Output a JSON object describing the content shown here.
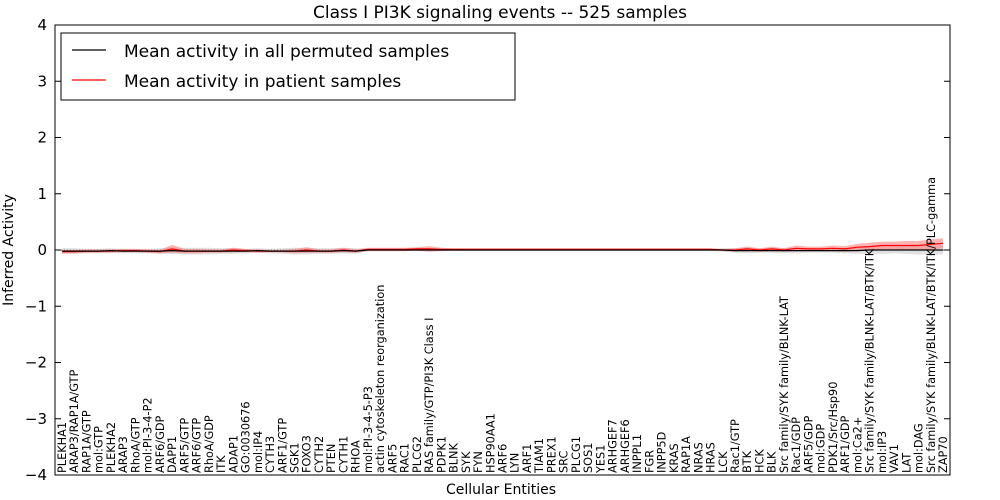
{
  "chart_data": {
    "type": "line",
    "title": "Class I PI3K signaling events -- 525 samples",
    "xlabel": "Cellular Entities",
    "ylabel": "Inferred Activity",
    "ylim": [
      -4,
      4
    ],
    "yticks": [
      "−4",
      "−3",
      "−2",
      "−1",
      "0",
      "1",
      "2",
      "3",
      "4"
    ],
    "legend_position": "top-left",
    "colors": {
      "permuted": "#000000",
      "patient": "#ff0000",
      "patient_band": "#ff7777",
      "permuted_band": "#bbbbbb",
      "zero_line": "#555555"
    },
    "categories": [
      "PLEKHA1",
      "ARAP3/RAP1A/GTP",
      "RAP1A/GTP",
      "mol:GTP",
      "PLEKHA2",
      "ARAP3",
      "RhoA/GTP",
      "mol:PI-3-4-P2",
      "ARF6/GDP",
      "DAPP1",
      "ARF5/GTP",
      "ARF6/GTP",
      "RhoA/GDP",
      "ITK",
      "ADAP1",
      "GO:0030676",
      "mol:IP4",
      "CYTH3",
      "ARF1/GTP",
      "SGK1",
      "FOXO3",
      "CYTH2",
      "PTEN",
      "CYTH1",
      "RHOA",
      "mol:PI-3-4-5-P3",
      "actin cytoskeleton reorganization",
      "ARF5",
      "RAC1",
      "PLCG2",
      "RAS family/GTP/PI3K Class I",
      "PDPK1",
      "BLNK",
      "SYK",
      "FYN",
      "HSP90AA1",
      "ARF6",
      "LYN",
      "ARF1",
      "TIAM1",
      "PREX1",
      "SRC",
      "PLCG1",
      "SOS1",
      "YES1",
      "ARHGEF7",
      "ARHGEF6",
      "INPPL1",
      "FGR",
      "INPP5D",
      "KRAS",
      "RAP1A",
      "NRAS",
      "HRAS",
      "LCK",
      "Rac1/GTP",
      "BTK",
      "HCK",
      "BLK",
      "Src family/SYK family/BLNK-LAT",
      "Rac1/GDP",
      "ARF5/GDP",
      "mol:GDP",
      "PDK1/Src/Hsp90",
      "ARF1/GDP",
      "mol:Ca2+",
      "Src family/SYK family/BLNK-LAT/BTK/ITK",
      "mol:IP3",
      "VAV1",
      "LAT",
      "mol:DAG",
      "Src family/SYK family/BLNK-LAT/BTK/ITK/PLC-gamma",
      "ZAP70"
    ],
    "series": [
      {
        "name": "Mean activity in all permuted samples",
        "values": [
          -0.02,
          -0.02,
          -0.02,
          -0.02,
          -0.01,
          -0.02,
          -0.02,
          -0.02,
          -0.02,
          -0.01,
          -0.02,
          -0.02,
          -0.02,
          -0.02,
          -0.02,
          -0.02,
          -0.01,
          -0.02,
          -0.02,
          -0.02,
          -0.02,
          -0.02,
          -0.02,
          -0.01,
          -0.02,
          0.0,
          0.0,
          0.0,
          0.0,
          0.0,
          0.0,
          0.0,
          0.0,
          0.0,
          0.0,
          0.0,
          0.0,
          0.0,
          0.0,
          0.0,
          0.0,
          0.0,
          0.0,
          0.0,
          0.0,
          0.0,
          0.0,
          0.0,
          0.0,
          0.0,
          0.0,
          0.0,
          0.0,
          0.0,
          0.0,
          -0.01,
          -0.01,
          -0.01,
          -0.01,
          -0.01,
          -0.01,
          -0.01,
          -0.01,
          -0.01,
          -0.01,
          -0.01,
          0.0,
          0.0,
          0.0,
          0.0,
          0.0,
          0.0,
          0.0
        ],
        "band": [
          0.05,
          0.05,
          0.04,
          0.04,
          0.04,
          0.04,
          0.04,
          0.04,
          0.05,
          0.06,
          0.06,
          0.06,
          0.06,
          0.05,
          0.05,
          0.04,
          0.04,
          0.04,
          0.05,
          0.06,
          0.06,
          0.05,
          0.05,
          0.05,
          0.05,
          0.02,
          0.02,
          0.02,
          0.02,
          0.02,
          0.02,
          0.02,
          0.02,
          0.02,
          0.02,
          0.02,
          0.02,
          0.02,
          0.02,
          0.02,
          0.02,
          0.02,
          0.02,
          0.02,
          0.02,
          0.02,
          0.02,
          0.02,
          0.02,
          0.02,
          0.02,
          0.02,
          0.02,
          0.02,
          0.03,
          0.04,
          0.05,
          0.04,
          0.04,
          0.05,
          0.05,
          0.04,
          0.04,
          0.04,
          0.05,
          0.06,
          0.07,
          0.07,
          0.06,
          0.07,
          0.08,
          0.08,
          0.08
        ]
      },
      {
        "name": "Mean activity in patient samples",
        "values": [
          -0.03,
          -0.03,
          -0.02,
          -0.02,
          -0.02,
          -0.01,
          -0.01,
          -0.02,
          -0.03,
          0.02,
          -0.02,
          -0.02,
          -0.02,
          -0.02,
          0.0,
          -0.01,
          -0.02,
          -0.02,
          -0.02,
          -0.02,
          0.0,
          -0.02,
          -0.02,
          0.0,
          -0.02,
          0.01,
          0.01,
          0.01,
          0.01,
          0.02,
          0.02,
          0.01,
          0.01,
          0.01,
          0.01,
          0.01,
          0.01,
          0.01,
          0.01,
          0.01,
          0.01,
          0.01,
          0.01,
          0.01,
          0.01,
          0.01,
          0.01,
          0.01,
          0.01,
          0.01,
          0.01,
          0.01,
          0.01,
          0.01,
          0.0,
          0.0,
          0.02,
          0.0,
          0.02,
          0.0,
          0.03,
          0.02,
          0.02,
          0.03,
          0.02,
          0.05,
          0.06,
          0.08,
          0.08,
          0.08,
          0.08,
          0.1,
          0.12
        ],
        "band": [
          0.03,
          0.03,
          0.03,
          0.03,
          0.03,
          0.03,
          0.03,
          0.03,
          0.03,
          0.07,
          0.04,
          0.04,
          0.03,
          0.03,
          0.04,
          0.03,
          0.03,
          0.02,
          0.02,
          0.04,
          0.05,
          0.03,
          0.03,
          0.04,
          0.03,
          0.03,
          0.03,
          0.03,
          0.03,
          0.03,
          0.05,
          0.03,
          0.02,
          0.02,
          0.02,
          0.02,
          0.02,
          0.02,
          0.02,
          0.02,
          0.02,
          0.02,
          0.02,
          0.02,
          0.02,
          0.02,
          0.02,
          0.02,
          0.02,
          0.02,
          0.02,
          0.02,
          0.02,
          0.02,
          0.02,
          0.03,
          0.04,
          0.03,
          0.04,
          0.03,
          0.05,
          0.04,
          0.04,
          0.05,
          0.05,
          0.06,
          0.07,
          0.07,
          0.07,
          0.08,
          0.08,
          0.09,
          0.09
        ]
      }
    ]
  }
}
